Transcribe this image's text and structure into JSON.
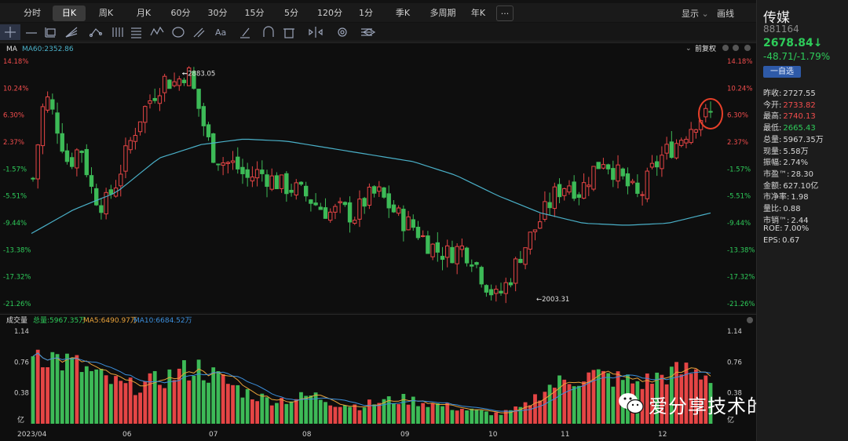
{
  "tabs": [
    "分时",
    "日K",
    "周K",
    "月K",
    "60分",
    "30分",
    "15分",
    "5分",
    "120分",
    "1分",
    "季K",
    "多周期",
    "年K"
  ],
  "active_tab": "日K",
  "more_label": "···",
  "display_menu": "显示",
  "drawing_label": "画线",
  "price_panel": {
    "indicator": "MA",
    "ma60": "MA60:2352.86",
    "adjust": "前复权",
    "y_labels": [
      "14.18%",
      "10.24%",
      "6.30%",
      "2.37%",
      "-1.57%",
      "-5.51%",
      "-9.44%",
      "-13.38%",
      "-17.32%",
      "-21.26%"
    ],
    "high_marker": "2883.05",
    "low_marker": "2003.31"
  },
  "volume_panel": {
    "title": "成交量",
    "total": "总量:5967.35万",
    "ma5": "MA5:6490.97万",
    "ma10": "MA10:6684.52万",
    "y_labels": [
      "1.14",
      "0.76",
      "0.38",
      "亿"
    ],
    "x_labels": [
      "2023/04",
      "06",
      "07",
      "08",
      "09",
      "10",
      "11",
      "12"
    ]
  },
  "chart_data": {
    "type": "candlestick",
    "y_axis_percent_ticks": [
      14.18,
      10.24,
      6.3,
      2.37,
      -1.57,
      -5.51,
      -9.44,
      -13.38,
      -17.32,
      -21.26
    ],
    "volume_axis_ticks_yi": [
      1.14,
      0.76,
      0.38
    ],
    "high": 2883.05,
    "low": 2003.31,
    "ma60_last": 2352.86,
    "close_path_pct": [
      -3.0,
      9.5,
      5.0,
      -1.0,
      2.0,
      -5.0,
      -7.0,
      -3.5,
      1.5,
      6.0,
      9.0,
      11.5,
      11.0,
      13.0,
      7.0,
      1.0,
      -0.5,
      -1.0,
      -3.0,
      -2.0,
      -3.0,
      -4.0,
      -4.5,
      -5.5,
      -7.0,
      -8.0,
      -7.5,
      -8.5,
      -6.0,
      -5.0,
      -7.0,
      -9.0,
      -10.0,
      -12.0,
      -13.5,
      -14.0,
      -13.0,
      -14.5,
      -18.0,
      -20.5,
      -18.0,
      -14.0,
      -11.0,
      -8.0,
      -5.0,
      -3.5,
      -5.0,
      -2.0,
      0.0,
      -2.0,
      -4.0,
      -6.0,
      -2.0,
      0.5,
      2.0,
      4.0,
      6.0,
      6.3
    ],
    "ma60_path_pct": [
      -11.0,
      -7.5,
      -5.0,
      0.0,
      2.0,
      2.8,
      2.5,
      1.5,
      0.5,
      -0.5,
      -2.5,
      -5.5,
      -8.0,
      -9.5,
      -9.8,
      -9.5,
      -8.0
    ]
  },
  "sidebar": {
    "name": "传媒",
    "code": "881164",
    "price": "2678.84↓",
    "change": "-48.71/-1.79%",
    "watch_button": "一自选",
    "stats": [
      {
        "label": "昨收:",
        "value": "2727.55",
        "color": "#d8d8d8"
      },
      {
        "label": "今开:",
        "value": "2733.82",
        "color": "#f24d4d"
      },
      {
        "label": "最高:",
        "value": "2740.13",
        "color": "#f24d4d"
      },
      {
        "label": "最低:",
        "value": "2665.43",
        "color": "#2ecc5a"
      },
      {
        "label": "总量:",
        "value": "5967.35万",
        "color": "#d8d8d8"
      },
      {
        "label": "现量:",
        "value": "5.58万",
        "color": "#d8d8d8"
      },
      {
        "label": "振幅:",
        "value": "2.74%",
        "color": "#d8d8d8"
      },
      {
        "label": "市盈™:",
        "value": "28.30",
        "color": "#d8d8d8"
      },
      {
        "label": "金额:",
        "value": "627.10亿",
        "color": "#d8d8d8"
      },
      {
        "label": "市净率:",
        "value": "1.98",
        "color": "#d8d8d8"
      },
      {
        "label": "量比:",
        "value": "0.88",
        "color": "#d8d8d8"
      },
      {
        "label": "市销™:",
        "value": "2.44",
        "color": "#d8d8d8"
      },
      {
        "label": "ROE:",
        "value": "7.00%",
        "color": "#d8d8d8"
      },
      {
        "label": "EPS:",
        "value": "0.67",
        "color": "#d8d8d8"
      }
    ]
  },
  "watermark": "爱分享技术的大白",
  "colors": {
    "up": "#e54545",
    "down": "#3dba57",
    "ma60": "#4ab0c8",
    "ma5": "#e8a23a",
    "ma10": "#3c8fdc",
    "highlight": "#e8402a"
  }
}
